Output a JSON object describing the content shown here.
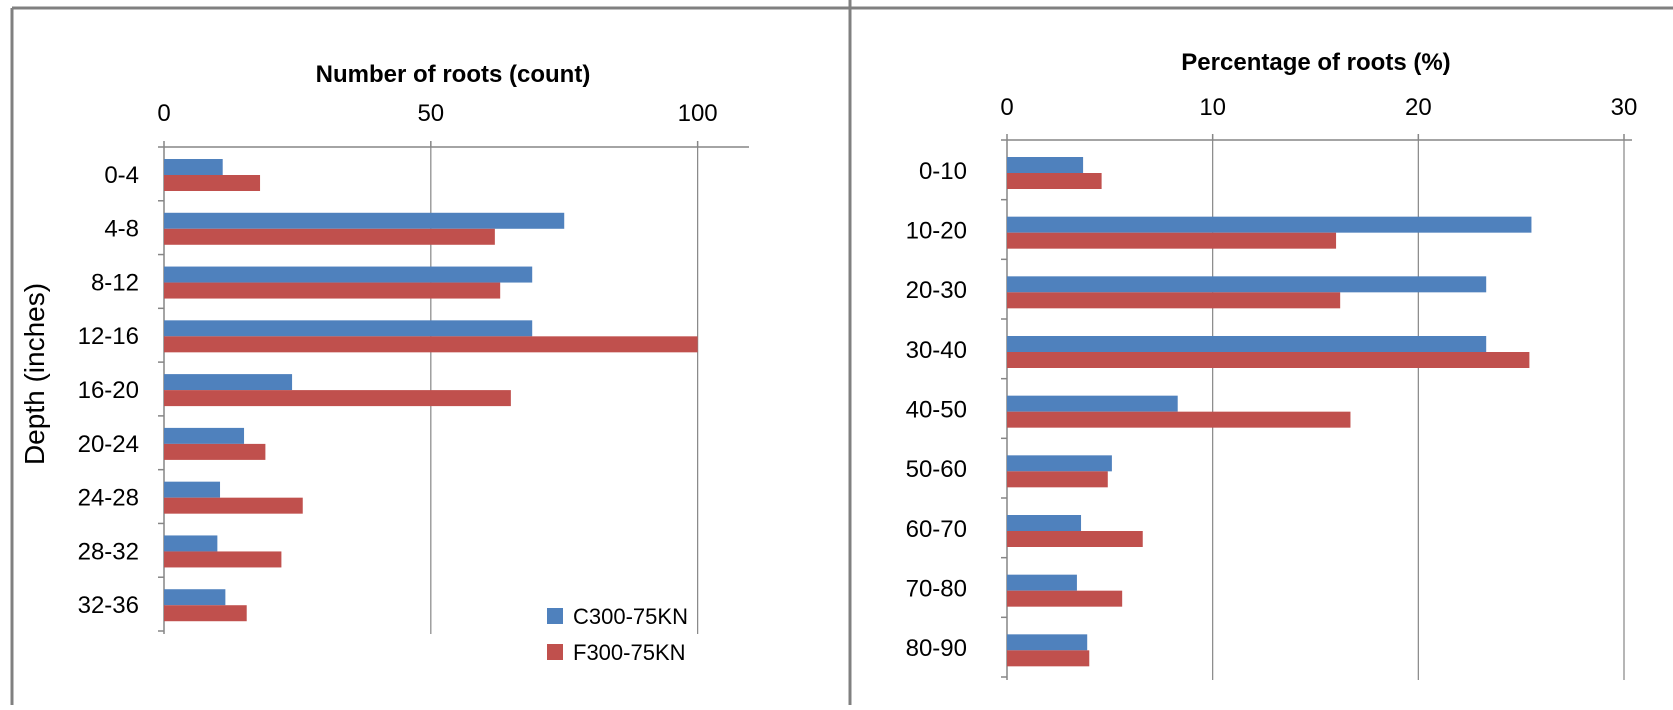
{
  "colors": {
    "series1": "#4f81bd",
    "series2": "#c0504d",
    "axis": "#868686",
    "frame": "#808080",
    "text": "#000000"
  },
  "chart_data": [
    {
      "type": "bar",
      "orientation": "horizontal",
      "title": "Number of roots (count)",
      "ylabel": "Depth (inches)",
      "categories": [
        "0-4",
        "4-8",
        "8-12",
        "12-16",
        "16-20",
        "20-24",
        "24-28",
        "28-32",
        "32-36"
      ],
      "xlim": [
        0,
        110
      ],
      "xticks": [
        0,
        50,
        100
      ],
      "grid": true,
      "legend_position": "bottom-right",
      "series": [
        {
          "name": "C300-75KN",
          "values": [
            11,
            75,
            69,
            69,
            24,
            15,
            10.5,
            10,
            11.5
          ]
        },
        {
          "name": "F300-75KN",
          "values": [
            18,
            62,
            63,
            100,
            65,
            19,
            26,
            22,
            15.5
          ]
        }
      ]
    },
    {
      "type": "bar",
      "orientation": "horizontal",
      "title": "Percentage of roots (%)",
      "categories": [
        "0-10",
        "10-20",
        "20-30",
        "30-40",
        "40-50",
        "50-60",
        "60-70",
        "70-80",
        "80-90"
      ],
      "xlim": [
        0,
        30
      ],
      "xticks": [
        0,
        10,
        20,
        30
      ],
      "grid": true,
      "series": [
        {
          "name": "C300-75KN",
          "values": [
            3.7,
            25.5,
            23.3,
            23.3,
            8.3,
            5.1,
            3.6,
            3.4,
            3.9
          ]
        },
        {
          "name": "F300-75KN",
          "values": [
            4.6,
            16,
            16.2,
            25.4,
            16.7,
            4.9,
            6.6,
            5.6,
            4
          ]
        }
      ]
    }
  ]
}
